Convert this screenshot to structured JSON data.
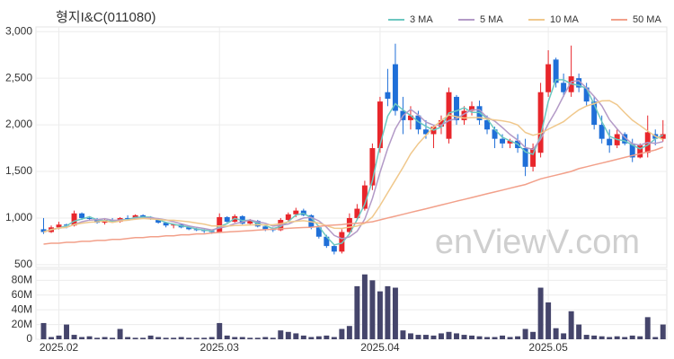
{
  "chart_data": {
    "type": "candlestick",
    "title": "형지I&C(011080)",
    "watermark": "enViewV.com",
    "up_color": "#e8262b",
    "down_color": "#1f6fd8",
    "open": [
      880,
      850,
      900,
      930,
      920,
      1050,
      1000,
      990,
      950,
      980,
      960,
      1000,
      990,
      1030,
      1010,
      990,
      950,
      920,
      930,
      900,
      880,
      870,
      860,
      850,
      1010,
      960,
      1020,
      940,
      970,
      910,
      880,
      870,
      980,
      1040,
      1080,
      1030,
      900,
      800,
      700,
      640,
      850,
      1000,
      1100,
      1350,
      1750,
      2350,
      2650,
      2150,
      2050,
      2100,
      1950,
      1900,
      1980,
      1850,
      2300,
      2050,
      2150,
      2200,
      2050,
      1950,
      1850,
      1800,
      1830,
      1750,
      1550,
      1700,
      2350,
      2700,
      2450,
      2350,
      2500,
      2400,
      2250,
      2000,
      1850,
      1780,
      1900,
      1800,
      1650,
      1700,
      1900,
      1850
    ],
    "high": [
      1000,
      920,
      960,
      940,
      1080,
      1060,
      1020,
      1000,
      990,
      1000,
      1010,
      1030,
      1040,
      1040,
      1020,
      1000,
      960,
      940,
      940,
      920,
      900,
      880,
      870,
      1050,
      1020,
      1040,
      1030,
      990,
      980,
      930,
      900,
      1000,
      1060,
      1110,
      1100,
      1040,
      920,
      820,
      720,
      880,
      1050,
      1150,
      1400,
      1800,
      2300,
      2600,
      2870,
      2300,
      2200,
      2150,
      2050,
      2000,
      2100,
      2400,
      2320,
      2200,
      2250,
      2260,
      2100,
      1980,
      1900,
      1850,
      1900,
      1850,
      1800,
      2450,
      2800,
      2720,
      2550,
      2850,
      2550,
      2450,
      2300,
      2100,
      1950,
      1950,
      1920,
      1850,
      1800,
      2100,
      1950,
      2050
    ],
    "low": [
      830,
      840,
      880,
      890,
      910,
      980,
      970,
      940,
      930,
      950,
      950,
      980,
      980,
      1000,
      980,
      940,
      900,
      890,
      890,
      870,
      860,
      840,
      830,
      840,
      950,
      950,
      930,
      920,
      900,
      860,
      850,
      860,
      960,
      1010,
      1020,
      880,
      780,
      680,
      610,
      620,
      830,
      980,
      1080,
      1300,
      1700,
      2200,
      2100,
      1900,
      1950,
      1900,
      1850,
      1750,
      1900,
      1800,
      2000,
      2000,
      2100,
      2000,
      1900,
      1750,
      1750,
      1750,
      1700,
      1450,
      1500,
      1650,
      2300,
      2400,
      2300,
      2300,
      2350,
      2200,
      1950,
      1800,
      1700,
      1750,
      1780,
      1600,
      1640,
      1650,
      1780,
      1820
    ],
    "close": [
      850,
      900,
      930,
      920,
      1050,
      1000,
      990,
      950,
      980,
      960,
      1000,
      990,
      1030,
      1010,
      990,
      950,
      920,
      930,
      900,
      880,
      870,
      860,
      850,
      1010,
      960,
      1020,
      940,
      970,
      910,
      880,
      870,
      980,
      1040,
      1080,
      1030,
      900,
      800,
      700,
      640,
      850,
      1000,
      1100,
      1350,
      1750,
      2250,
      2280,
      2150,
      2050,
      2100,
      1950,
      1900,
      1980,
      2050,
      2350,
      2050,
      2150,
      2200,
      2050,
      1950,
      1850,
      1800,
      1830,
      1750,
      1550,
      1750,
      2350,
      2650,
      2450,
      2350,
      2520,
      2400,
      2250,
      2000,
      1850,
      1780,
      1900,
      1800,
      1650,
      1780,
      1920,
      1850,
      1900
    ],
    "series": [
      {
        "name": "3 MA",
        "color": "#6cc7c0",
        "values": [
          850,
          875,
          893,
          917,
          967,
          990,
          1013,
          980,
          973,
          963,
          980,
          983,
          1007,
          1010,
          1010,
          983,
          953,
          933,
          917,
          903,
          883,
          870,
          860,
          907,
          940,
          997,
          973,
          977,
          940,
          920,
          887,
          910,
          963,
          1033,
          1050,
          1003,
          910,
          800,
          713,
          730,
          830,
          983,
          1150,
          1400,
          1783,
          2093,
          2227,
          2160,
          2100,
          2033,
          1983,
          1943,
          1977,
          2127,
          2150,
          2183,
          2133,
          2133,
          2067,
          1950,
          1867,
          1827,
          1793,
          1710,
          1683,
          1883,
          2250,
          2483,
          2483,
          2440,
          2423,
          2390,
          2217,
          2033,
          1877,
          1843,
          1827,
          1783,
          1743,
          1783,
          1850,
          1890
        ]
      },
      {
        "name": "5 MA",
        "color": "#b39ac7",
        "values": [
          850,
          875,
          893,
          900,
          930,
          960,
          978,
          982,
          994,
          976,
          976,
          976,
          992,
          998,
          1004,
          994,
          980,
          960,
          938,
          916,
          900,
          888,
          872,
          894,
          910,
          940,
          956,
          980,
          960,
          944,
          914,
          922,
          936,
          970,
          1000,
          1006,
          970,
          902,
          814,
          778,
          798,
          858,
          988,
          1210,
          1490,
          1746,
          1956,
          2096,
          2166,
          2106,
          2030,
          1996,
          1996,
          2046,
          2066,
          2116,
          2160,
          2160,
          2080,
          2040,
          1970,
          1896,
          1836,
          1756,
          1736,
          1846,
          2010,
          2150,
          2310,
          2464,
          2474,
          2394,
          2304,
          2204,
          2056,
          1956,
          1866,
          1796,
          1782,
          1810,
          1800,
          1820
        ]
      },
      {
        "name": "10 MA",
        "color": "#f0c88c",
        "values": [
          850,
          875,
          893,
          900,
          930,
          945,
          955,
          960,
          970,
          953,
          968,
          977,
          987,
          996,
          990,
          985,
          978,
          976,
          968,
          960,
          947,
          934,
          916,
          916,
          913,
          920,
          922,
          926,
          927,
          927,
          927,
          939,
          958,
          965,
          972,
          960,
          946,
          919,
          892,
          889,
          902,
          914,
          945,
          1012,
          1134,
          1272,
          1407,
          1542,
          1688,
          1798,
          1888,
          1976,
          2046,
          2106,
          2086,
          2073,
          2078,
          2078,
          2063,
          2053,
          2043,
          2028,
          1998,
          1918,
          1888,
          1908,
          1953,
          1993,
          2033,
          2100,
          2160,
          2202,
          2227,
          2257,
          2260,
          2215,
          2130,
          2050,
          1993,
          1933,
          1878,
          1843
        ]
      },
      {
        "name": "50 MA",
        "color": "#f2a08a",
        "values": [
          720,
          730,
          730,
          740,
          740,
          750,
          750,
          760,
          760,
          770,
          770,
          780,
          790,
          790,
          800,
          800,
          810,
          810,
          820,
          820,
          830,
          830,
          840,
          845,
          850,
          855,
          860,
          865,
          870,
          875,
          880,
          885,
          890,
          895,
          898,
          900,
          910,
          920,
          925,
          930,
          940,
          945,
          950,
          960,
          980,
          1000,
          1020,
          1040,
          1060,
          1080,
          1100,
          1120,
          1140,
          1160,
          1180,
          1200,
          1220,
          1240,
          1260,
          1280,
          1300,
          1320,
          1340,
          1360,
          1390,
          1420,
          1440,
          1460,
          1480,
          1500,
          1530,
          1550,
          1570,
          1590,
          1610,
          1630,
          1650,
          1670,
          1690,
          1710,
          1730,
          1760
        ]
      }
    ],
    "volume": {
      "color": "#45456b",
      "values": [
        22000000,
        3000000,
        5000000,
        20000000,
        6000000,
        3000000,
        4000000,
        2000000,
        3000000,
        2000000,
        14000000,
        3000000,
        2000000,
        2000000,
        5000000,
        3000000,
        2000000,
        2000000,
        3000000,
        2000000,
        2000000,
        2000000,
        3000000,
        22000000,
        5000000,
        3000000,
        3000000,
        2000000,
        2000000,
        3000000,
        2000000,
        12000000,
        10000000,
        8000000,
        5000000,
        3000000,
        4000000,
        5000000,
        3000000,
        14000000,
        18000000,
        72000000,
        88000000,
        80000000,
        65000000,
        72000000,
        70000000,
        12000000,
        8000000,
        6000000,
        6000000,
        5000000,
        8000000,
        10000000,
        8000000,
        6000000,
        5000000,
        4000000,
        3000000,
        3000000,
        5000000,
        3000000,
        4000000,
        14000000,
        10000000,
        70000000,
        50000000,
        15000000,
        8000000,
        38000000,
        20000000,
        6000000,
        5000000,
        4000000,
        3000000,
        4000000,
        3000000,
        5000000,
        4000000,
        30000000,
        3000000,
        20000000
      ]
    },
    "xlim": [
      -1,
      81.5
    ],
    "xticks": [
      {
        "value": 2,
        "label": "2025.02"
      },
      {
        "value": 23,
        "label": "2025.03"
      },
      {
        "value": 44,
        "label": "2025.04"
      },
      {
        "value": 66,
        "label": "2025.05"
      }
    ],
    "ylim": [
      470,
      3050
    ],
    "yticks": [
      500,
      {
        "value": 1000,
        "label": "1,000"
      },
      {
        "value": 1500,
        "label": "1,500"
      },
      {
        "value": 2000,
        "label": "2,000"
      },
      {
        "value": 2500,
        "label": "2,500"
      },
      {
        "value": 3000,
        "label": "3,000"
      }
    ],
    "y2lim": [
      0,
      95000000
    ],
    "y2ticks": [
      0,
      {
        "value": 20000000,
        "label": "20M"
      },
      {
        "value": 40000000,
        "label": "40M"
      },
      {
        "value": 60000000,
        "label": "60M"
      },
      {
        "value": 80000000,
        "label": "80M"
      }
    ],
    "grid": true
  }
}
